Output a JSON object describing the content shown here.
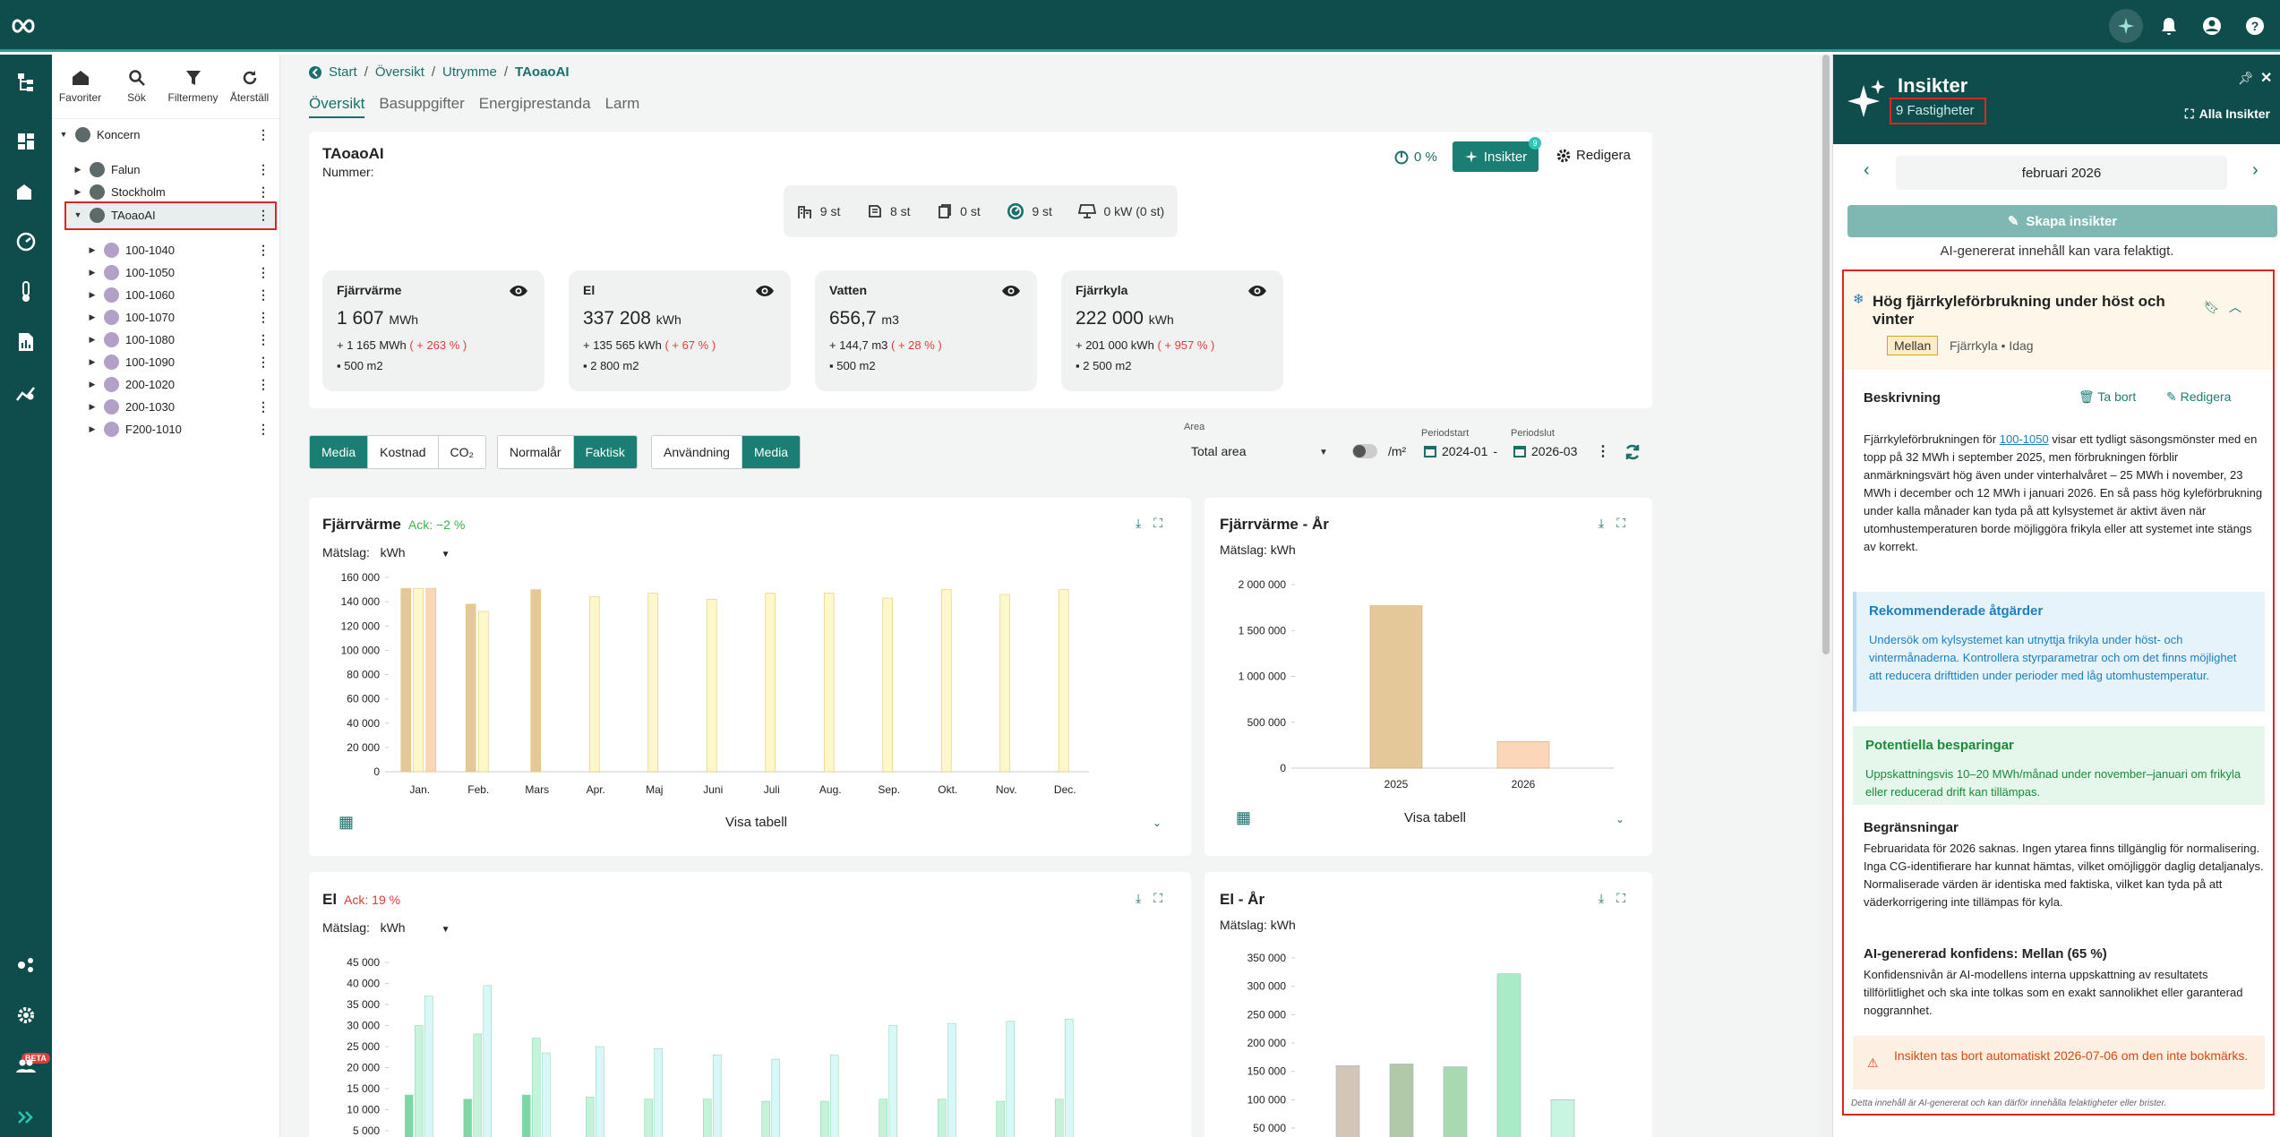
{
  "topbar": {
    "icons": [
      "ai-sparkle-icon",
      "bell-icon",
      "account-icon",
      "help-icon"
    ]
  },
  "tree": {
    "tools": [
      {
        "label": "Favoriter",
        "icon": "home-icon"
      },
      {
        "label": "Sök",
        "icon": "search-icon"
      },
      {
        "label": "Filtermeny",
        "icon": "filter-icon"
      },
      {
        "label": "Återställ",
        "icon": "refresh-icon"
      }
    ],
    "root": "Koncern",
    "n1": "Falun",
    "n2": "Stockholm",
    "n3": "TAoaoAI",
    "children": [
      "100-1040",
      "100-1050",
      "100-1060",
      "100-1070",
      "100-1080",
      "100-1090",
      "200-1020",
      "200-1030",
      "F200-1010"
    ]
  },
  "breadcrumb": {
    "items": [
      "Start",
      "Översikt",
      "Utrymme"
    ],
    "current": "TAoaoAI"
  },
  "tabs": [
    "Översikt",
    "Basuppgifter",
    "Energiprestanda",
    "Larm"
  ],
  "header": {
    "name": "TAoaoAI",
    "nummer": "Nummer:",
    "percent": "0 %",
    "insikter": "Insikter",
    "insikter_badge": "9",
    "redigera": "Redigera"
  },
  "counts": [
    "9 st",
    "8 st",
    "0 st",
    "9 st",
    "0 kW (0 st)"
  ],
  "kpis": [
    {
      "title": "Fjärrvärme",
      "value": "1 607",
      "unit": "MWh",
      "delta": "+ 1 165 MWh",
      "pct": "( + 263 % )",
      "area": "500 m2"
    },
    {
      "title": "El",
      "value": "337 208",
      "unit": "kWh",
      "delta": "+ 135 565 kWh",
      "pct": "( + 67 % )",
      "area": "2 800 m2"
    },
    {
      "title": "Vatten",
      "value": "656,7",
      "unit": "m3",
      "delta": "+ 144,7 m3",
      "pct": "( + 28 % )",
      "area": "500 m2"
    },
    {
      "title": "Fjärrkyla",
      "value": "222 000",
      "unit": "kWh",
      "delta": "+ 201 000 kWh",
      "pct": "( + 957 % )",
      "area": "2 500 m2"
    }
  ],
  "filters": {
    "seg1": [
      "Media",
      "Kostnad",
      "CO₂"
    ],
    "seg2": [
      "Normalår",
      "Faktisk"
    ],
    "seg3": [
      "Användning",
      "Media"
    ],
    "area_label": "Area",
    "area_value": "Total area",
    "per_m2": "/m²",
    "periodstart_label": "Periodstart",
    "periodstart": "2024-01",
    "dash": "-",
    "periodslut_label": "Periodslut",
    "periodslut": "2026-03"
  },
  "charts": {
    "fv_title": "Fjärrvärme",
    "fv_ack": "Ack: −2 %",
    "matslag_label": "Mätslag:",
    "matslag_value": "kWh",
    "fvyr_title": "Fjärrvärme - År",
    "fvyr_matslag": "Mätslag: kWh",
    "el_title": "El",
    "el_ack": "Ack: 19 %",
    "elyr_title": "El - År",
    "elyr_matslag": "Mätslag: kWh",
    "visa": "Visa tabell"
  },
  "chart_data": [
    {
      "type": "bar",
      "title": "Fjärrvärme",
      "ylabel": "kWh",
      "ylim": [
        0,
        160000
      ],
      "yticks": [
        "160 000",
        "140 000",
        "120 000",
        "100 000",
        "80 000",
        "60 000",
        "40 000",
        "20 000",
        "0"
      ],
      "categories": [
        "Jan.",
        "Feb.",
        "Mars",
        "Apr.",
        "Maj",
        "Juni",
        "Juli",
        "Aug.",
        "Sep.",
        "Okt.",
        "Nov.",
        "Dec."
      ],
      "series": [
        {
          "values": [
            151000,
            138000,
            150000,
            null,
            null,
            null,
            null,
            null,
            null,
            null,
            null,
            null
          ],
          "color": "#e5c89a"
        },
        {
          "values": [
            151000,
            132000,
            null,
            144000,
            147000,
            142000,
            147000,
            147000,
            143000,
            150000,
            146000,
            150000
          ],
          "color": "#fdf7c9"
        },
        {
          "values": [
            151000,
            null,
            null,
            null,
            null,
            null,
            null,
            null,
            null,
            null,
            null,
            null
          ],
          "color": "#fbd6b8"
        }
      ]
    },
    {
      "type": "bar",
      "title": "Fjärrvärme - År",
      "ylim": [
        0,
        2000000
      ],
      "yticks": [
        "2 000 000",
        "1 500 000",
        "1 000 000",
        "500 000",
        "0"
      ],
      "categories": [
        "2025",
        "2026"
      ],
      "values": [
        1770000,
        290000
      ],
      "colors": [
        "#e5c89a",
        "#fbd6b8"
      ]
    },
    {
      "type": "bar",
      "title": "El",
      "ylim": [
        0,
        45000
      ],
      "yticks": [
        "45 000",
        "40 000",
        "35 000",
        "30 000",
        "25 000",
        "20 000",
        "15 000",
        "10 000",
        "5 000"
      ],
      "categories": [
        "Jan.",
        "Feb.",
        "Mars",
        "Apr.",
        "Maj",
        "Juni",
        "Juli",
        "Aug.",
        "Sep.",
        "Okt.",
        "Nov.",
        "Dec."
      ],
      "series": [
        {
          "values": [
            13500,
            12500,
            13500,
            null,
            null,
            null,
            null,
            null,
            null,
            null,
            null,
            null
          ],
          "color": "#7ed6a5"
        },
        {
          "values": [
            30000,
            28000,
            27000,
            13000,
            12500,
            12500,
            12000,
            12000,
            12500,
            12500,
            12000,
            12500
          ],
          "color": "#c5f2d9"
        },
        {
          "values": [
            37000,
            39500,
            23500,
            25000,
            24500,
            23000,
            22000,
            23000,
            30000,
            30500,
            31000,
            31500
          ],
          "color": "#d9f7f7"
        }
      ]
    },
    {
      "type": "bar",
      "title": "El - År",
      "ylim": [
        50000,
        350000
      ],
      "yticks": [
        "350 000",
        "300 000",
        "250 000",
        "200 000",
        "150 000",
        "100 000",
        "50 000"
      ],
      "values": [
        160000,
        163000,
        158000,
        322000,
        100000
      ],
      "colors": [
        "#d3c5b8",
        "#b2c9a9",
        "#a9d9b0",
        "#a9eac7",
        "#c8f5e1"
      ]
    }
  ],
  "panel": {
    "title": "Insikter",
    "subtitle": "9 Fastigheter",
    "all": "Alla Insikter",
    "month": "februari 2026",
    "skapa": "Skapa insikter",
    "ai_warning": "AI-genererat innehåll kan vara felaktigt.",
    "insight": {
      "title": "Hög fjärrkyleförbrukning under höst och vinter",
      "level": "Mellan",
      "meta": "Fjärrkyla • Idag",
      "beskrivning_label": "Beskrivning",
      "ta_bort": "Ta bort",
      "redigera": "Redigera",
      "desc_pre": "Fjärrkyleförbrukningen för",
      "desc_link": "100-1050",
      "desc_post": " visar ett tydligt säsongsmönster med en topp på 32 MWh i september 2025, men förbrukningen förblir anmärkningsvärt hög även under vinterhalvåret – 25 MWh i november, 23 MWh i december och 12 MWh i januari 2026. En så pass hög kyleförbrukning under kalla månader kan tyda på att kylsystemet är aktivt även när utomhustemperaturen borde möjliggöra frikyla eller att systemet inte stängs av korrekt.",
      "rek_title": "Rekommenderade åtgärder",
      "rek_text": "Undersök om kylsystemet kan utnyttja frikyla under höst- och vintermånaderna. Kontrollera styrparametrar och om det finns möjlighet att reducera drifttiden under perioder med låg utomhustemperatur.",
      "pot_title": "Potentiella besparingar",
      "pot_text": "Uppskattningsvis 10–20 MWh/månad under november–januari om frikyla eller reducerad drift kan tillämpas.",
      "beg_title": "Begränsningar",
      "beg_text": "Februaridata för 2026 saknas. Ingen ytarea finns tillgänglig för normalisering. Inga CG-identifierare har kunnat hämtas, vilket omöjliggör daglig detaljanalys. Normaliserade värden är identiska med faktiska, vilket kan tyda på att väderkorrigering inte tillämpas för kyla.",
      "konf_title": "AI-genererad konfidens: Mellan (65 %)",
      "konf_text": "Konfidensnivån är AI-modellens interna uppskattning av resultatets tillförlitlighet och ska inte tolkas som en exakt sannolikhet eller garanterad noggrannhet.",
      "auto_delete": "Insikten tas bort automatiskt 2026-07-06 om den inte bokmärks.",
      "footer": "Detta innehåll är AI-genererat och kan därför innehålla felaktigheter eller brister."
    }
  },
  "colors": {
    "brand": "#0f4c4c",
    "accent": "#1b7e74",
    "red": "#e23b3b",
    "green": "#3bb34a"
  }
}
